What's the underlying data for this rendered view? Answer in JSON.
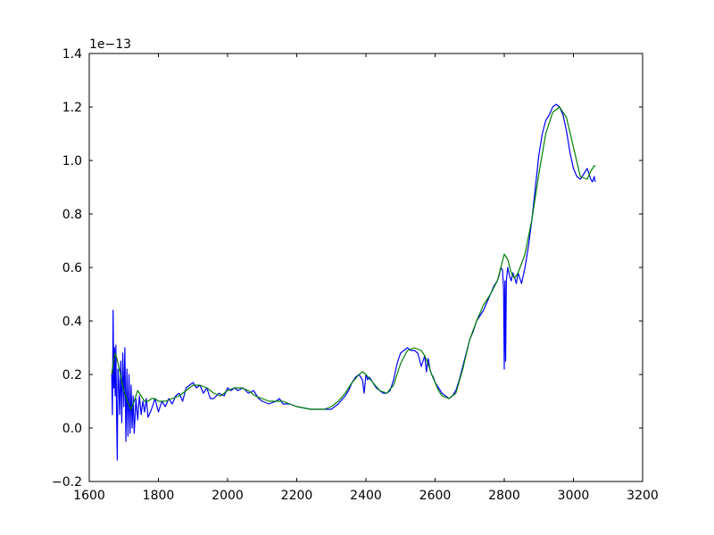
{
  "chart_data": {
    "type": "line",
    "title": "",
    "xlabel": "",
    "ylabel": "",
    "xlim": [
      1600,
      3200
    ],
    "ylim": [
      -0.2,
      1.4
    ],
    "y_offset_label": "1e−13",
    "x_ticks": [
      1600,
      1800,
      2000,
      2200,
      2400,
      2600,
      2800,
      3000,
      3200
    ],
    "x_tick_labels": [
      "1600",
      "1800",
      "2000",
      "2200",
      "2400",
      "2600",
      "2800",
      "3000",
      "3200"
    ],
    "y_ticks": [
      -0.2,
      0.0,
      0.2,
      0.4,
      0.6,
      0.8,
      1.0,
      1.2,
      1.4
    ],
    "y_tick_labels": [
      "−0.2",
      "0.0",
      "0.2",
      "0.4",
      "0.6",
      "0.8",
      "1.0",
      "1.2",
      "1.4"
    ],
    "grid": false,
    "legend": "none",
    "series": [
      {
        "color": "#0000ff",
        "x": [
          1665,
          1667,
          1669,
          1671,
          1673,
          1675,
          1677,
          1679,
          1681,
          1683,
          1685,
          1688,
          1691,
          1694,
          1697,
          1700,
          1703,
          1706,
          1709,
          1712,
          1715,
          1718,
          1721,
          1724,
          1727,
          1730,
          1735,
          1740,
          1745,
          1750,
          1755,
          1760,
          1765,
          1770,
          1780,
          1790,
          1800,
          1810,
          1820,
          1830,
          1840,
          1850,
          1860,
          1870,
          1880,
          1890,
          1900,
          1910,
          1920,
          1930,
          1940,
          1950,
          1960,
          1975,
          1990,
          2000,
          2010,
          2020,
          2030,
          2045,
          2060,
          2075,
          2090,
          2100,
          2120,
          2140,
          2150,
          2160,
          2180,
          2200,
          2220,
          2240,
          2260,
          2280,
          2300,
          2320,
          2340,
          2350,
          2360,
          2370,
          2380,
          2390,
          2395,
          2400,
          2405,
          2410,
          2420,
          2430,
          2440,
          2450,
          2460,
          2470,
          2480,
          2490,
          2500,
          2510,
          2520,
          2530,
          2540,
          2550,
          2560,
          2570,
          2575,
          2580,
          2585,
          2590,
          2595,
          2600,
          2610,
          2620,
          2630,
          2640,
          2650,
          2660,
          2670,
          2680,
          2690,
          2700,
          2710,
          2720,
          2730,
          2740,
          2750,
          2760,
          2770,
          2780,
          2785,
          2790,
          2795,
          2798,
          2800,
          2802,
          2804,
          2806,
          2810,
          2815,
          2820,
          2825,
          2830,
          2835,
          2840,
          2850,
          2860,
          2870,
          2880,
          2890,
          2900,
          2910,
          2920,
          2930,
          2940,
          2950,
          2960,
          2970,
          2980,
          2990,
          3000,
          3010,
          3020,
          3030,
          3040,
          3050,
          3055,
          3060,
          3063
        ],
        "y": [
          0.2,
          0.05,
          0.44,
          0.15,
          0.3,
          0.12,
          0.31,
          0.05,
          -0.12,
          0.22,
          0.18,
          0.05,
          0.25,
          0.02,
          0.28,
          0.08,
          0.3,
          -0.05,
          0.22,
          -0.03,
          0.2,
          -0.02,
          0.16,
          0.0,
          0.12,
          -0.02,
          0.11,
          0.03,
          0.12,
          0.05,
          0.1,
          0.06,
          0.11,
          0.04,
          0.07,
          0.11,
          0.06,
          0.1,
          0.08,
          0.11,
          0.09,
          0.12,
          0.13,
          0.1,
          0.15,
          0.16,
          0.17,
          0.15,
          0.16,
          0.13,
          0.15,
          0.11,
          0.11,
          0.13,
          0.12,
          0.15,
          0.14,
          0.15,
          0.14,
          0.15,
          0.13,
          0.14,
          0.11,
          0.1,
          0.09,
          0.1,
          0.11,
          0.09,
          0.09,
          0.08,
          0.075,
          0.07,
          0.07,
          0.07,
          0.07,
          0.09,
          0.12,
          0.14,
          0.17,
          0.19,
          0.2,
          0.18,
          0.13,
          0.2,
          0.18,
          0.19,
          0.17,
          0.15,
          0.14,
          0.13,
          0.13,
          0.14,
          0.18,
          0.24,
          0.28,
          0.29,
          0.3,
          0.29,
          0.29,
          0.28,
          0.23,
          0.27,
          0.21,
          0.26,
          0.22,
          0.2,
          0.19,
          0.17,
          0.15,
          0.13,
          0.12,
          0.11,
          0.12,
          0.14,
          0.18,
          0.23,
          0.28,
          0.33,
          0.36,
          0.4,
          0.42,
          0.44,
          0.47,
          0.5,
          0.53,
          0.55,
          0.57,
          0.6,
          0.59,
          0.52,
          0.22,
          0.55,
          0.25,
          0.55,
          0.6,
          0.57,
          0.55,
          0.58,
          0.56,
          0.54,
          0.58,
          0.54,
          0.6,
          0.68,
          0.78,
          0.9,
          1.02,
          1.1,
          1.15,
          1.17,
          1.2,
          1.21,
          1.2,
          1.17,
          1.11,
          1.03,
          0.97,
          0.94,
          0.93,
          0.95,
          0.97,
          0.93,
          0.92,
          0.94,
          0.92
        ]
      },
      {
        "color": "#008000",
        "x": [
          1665,
          1670,
          1675,
          1680,
          1690,
          1700,
          1710,
          1720,
          1730,
          1740,
          1750,
          1760,
          1770,
          1780,
          1790,
          1800,
          1820,
          1840,
          1860,
          1880,
          1900,
          1920,
          1940,
          1960,
          1980,
          2000,
          2020,
          2040,
          2060,
          2080,
          2100,
          2120,
          2140,
          2160,
          2180,
          2200,
          2220,
          2240,
          2260,
          2280,
          2300,
          2320,
          2340,
          2360,
          2380,
          2390,
          2400,
          2420,
          2440,
          2460,
          2480,
          2500,
          2520,
          2540,
          2560,
          2570,
          2580,
          2590,
          2600,
          2610,
          2620,
          2640,
          2660,
          2680,
          2700,
          2720,
          2740,
          2760,
          2780,
          2790,
          2800,
          2810,
          2820,
          2830,
          2840,
          2860,
          2880,
          2900,
          2920,
          2940,
          2960,
          2980,
          3000,
          3020,
          3040,
          3050,
          3060,
          3064
        ],
        "y": [
          0.2,
          0.25,
          0.28,
          0.26,
          0.2,
          0.14,
          0.1,
          0.07,
          0.1,
          0.14,
          0.12,
          0.1,
          0.1,
          0.11,
          0.11,
          0.1,
          0.1,
          0.11,
          0.12,
          0.14,
          0.16,
          0.16,
          0.15,
          0.13,
          0.12,
          0.14,
          0.15,
          0.15,
          0.14,
          0.12,
          0.11,
          0.1,
          0.1,
          0.1,
          0.09,
          0.08,
          0.075,
          0.07,
          0.07,
          0.07,
          0.08,
          0.1,
          0.13,
          0.17,
          0.2,
          0.21,
          0.2,
          0.17,
          0.14,
          0.13,
          0.16,
          0.24,
          0.29,
          0.3,
          0.29,
          0.27,
          0.24,
          0.2,
          0.17,
          0.14,
          0.12,
          0.11,
          0.13,
          0.22,
          0.33,
          0.4,
          0.46,
          0.5,
          0.55,
          0.6,
          0.65,
          0.63,
          0.58,
          0.56,
          0.58,
          0.65,
          0.78,
          0.95,
          1.1,
          1.18,
          1.2,
          1.16,
          1.05,
          0.94,
          0.93,
          0.96,
          0.98,
          0.98
        ]
      }
    ]
  }
}
